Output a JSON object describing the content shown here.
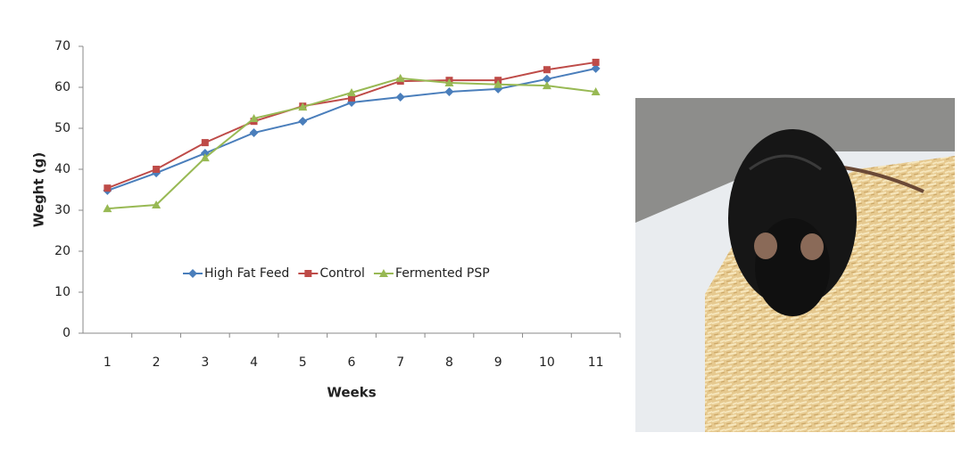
{
  "chart_data": {
    "type": "line",
    "ylabel": "Weght (g)",
    "xlabel": "Weeks",
    "categories": [
      "1",
      "2",
      "3",
      "4",
      "5",
      "6",
      "7",
      "8",
      "9",
      "10",
      "11"
    ],
    "series": [
      {
        "name": "High Fat Feed",
        "color": "#4a7ebb",
        "marker": "diamond",
        "values": [
          34.8,
          39.1,
          43.9,
          48.9,
          51.7,
          56.3,
          57.6,
          58.9,
          59.6,
          62.0,
          64.6
        ]
      },
      {
        "name": "Control",
        "color": "#be4b48",
        "marker": "square",
        "values": [
          35.4,
          40.0,
          46.5,
          51.7,
          55.4,
          57.4,
          61.5,
          61.7,
          61.7,
          64.3,
          66.1
        ]
      },
      {
        "name": "Fermented PSP",
        "color": "#98b954",
        "marker": "triangle",
        "values": [
          30.4,
          31.3,
          42.8,
          52.4,
          55.2,
          58.7,
          62.2,
          61.1,
          60.7,
          60.4,
          58.9
        ]
      }
    ],
    "ylim": [
      0,
      70
    ],
    "yticks": [
      0,
      10,
      20,
      30,
      40,
      50,
      60,
      70
    ],
    "grid": false,
    "legend": "inside-bottom"
  }
}
